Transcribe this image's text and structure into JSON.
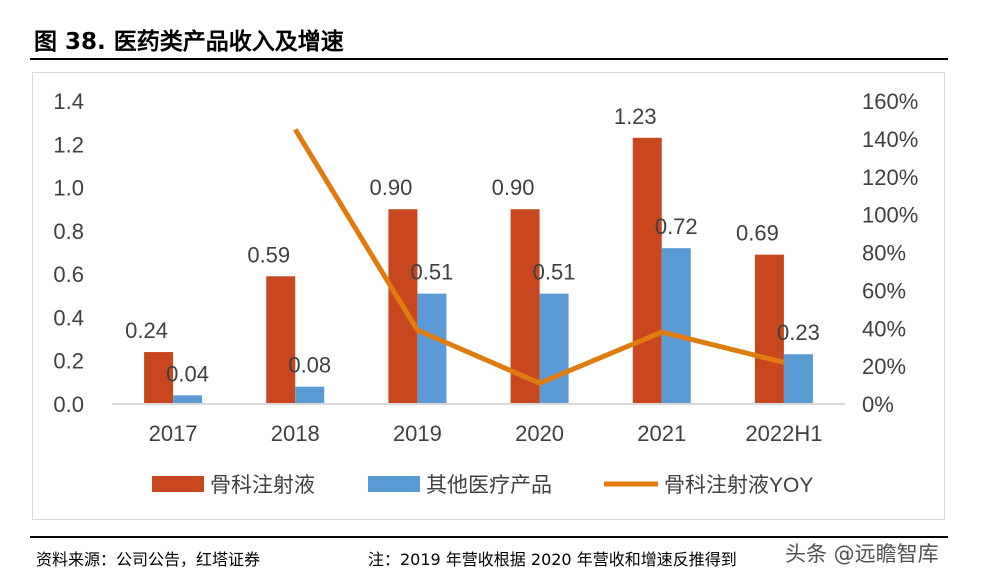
{
  "title": "图 38. 医药类产品收入及增速",
  "footer": {
    "source": "资料来源：公司公告，红塔证券",
    "note": "注：2019 年营收根据 2020 年营收和增速反推得到",
    "watermark": "头条 @远瞻智库"
  },
  "chart_data": {
    "type": "bar+line",
    "categories": [
      "2017",
      "2018",
      "2019",
      "2020",
      "2021",
      "2022H1"
    ],
    "series": [
      {
        "name": "骨科注射液",
        "type": "bar",
        "axis": "left",
        "color": "#C9471E",
        "values": [
          0.24,
          0.59,
          0.9,
          0.9,
          1.23,
          0.69
        ],
        "labels": [
          "0.24",
          "0.59",
          "0.90",
          "0.90",
          "1.23",
          "0.69"
        ]
      },
      {
        "name": "其他医疗产品",
        "type": "bar",
        "axis": "left",
        "color": "#5B9BD5",
        "values": [
          0.04,
          0.08,
          0.51,
          0.51,
          0.72,
          0.23
        ],
        "labels": [
          "0.04",
          "0.08",
          "0.51",
          "0.51",
          "0.72",
          "0.23"
        ]
      },
      {
        "name": "骨科注射液YOY",
        "type": "line",
        "axis": "right",
        "color": "#E07B10",
        "unit": "%",
        "values": [
          null,
          145,
          39,
          11,
          38,
          22
        ]
      }
    ],
    "left_axis": {
      "ylim": [
        0,
        1.4
      ],
      "ticks": [
        "0.0",
        "0.2",
        "0.4",
        "0.6",
        "0.8",
        "1.0",
        "1.2",
        "1.4"
      ]
    },
    "right_axis": {
      "ylim": [
        0,
        160
      ],
      "ticks": [
        "0%",
        "20%",
        "40%",
        "60%",
        "80%",
        "100%",
        "120%",
        "140%",
        "160%"
      ]
    },
    "grid": false,
    "legend": "bottom"
  }
}
